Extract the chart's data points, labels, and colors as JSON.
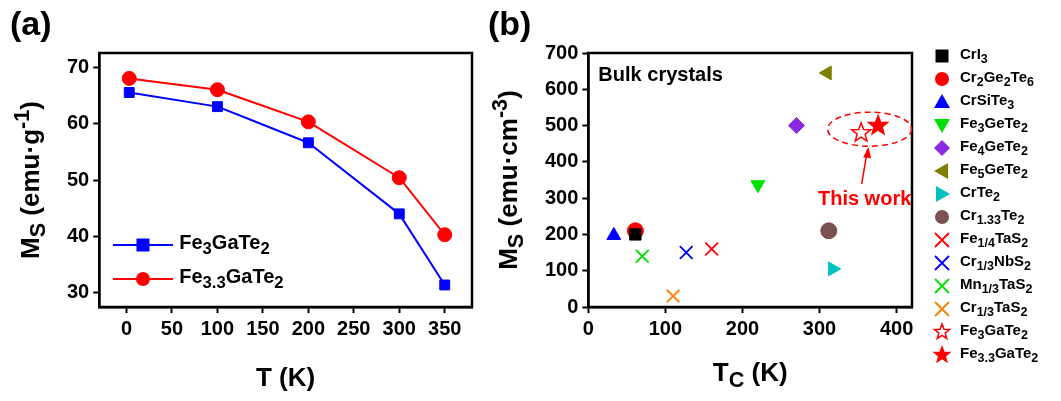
{
  "chart_data": [
    {
      "type": "line",
      "title": "(a)",
      "xlabel": "T (K)",
      "ylabel": "M$_{S}$ (emu·g$^{-1}$)",
      "x": [
        3,
        100,
        200,
        300,
        350
      ],
      "series": [
        {
          "name": "Fe$_{3}$GaTe$_{2}$",
          "color": "#0000ff",
          "marker": "square",
          "values": [
            65.5,
            63,
            56.6,
            44,
            31.4
          ]
        },
        {
          "name": "Fe$_{3.3}$GaTe$_{2}$",
          "color": "#ff0000",
          "marker": "circle",
          "values": [
            68,
            66,
            60.3,
            50.4,
            40.3
          ]
        }
      ],
      "xlim": [
        -30,
        380
      ],
      "ylim": [
        27.5,
        72.5
      ],
      "xticks": [
        0,
        50,
        100,
        150,
        200,
        250,
        300,
        350
      ],
      "yticks": [
        30,
        40,
        50,
        60,
        70
      ],
      "grid": false,
      "legend": "bottom left",
      "line_style": "solid"
    },
    {
      "type": "scatter",
      "title": "(b)",
      "xlabel": "T$_{C}$ (K)",
      "ylabel": "M$_{S}$ (emu·cm$^{-3}$)",
      "series": [
        {
          "name": "CrI$_{3}$",
          "color": "#000000",
          "marker": "square",
          "x": [
            61
          ],
          "values": [
            200
          ]
        },
        {
          "name": "Cr$_{2}$Ge$_{2}$Te$_{6}$",
          "color": "#ff0000",
          "marker": "circle",
          "x": [
            61
          ],
          "values": [
            210
          ]
        },
        {
          "name": "CrSiTe$_{3}$",
          "color": "#0000ff",
          "marker": "triangle",
          "x": [
            33
          ],
          "values": [
            197
          ]
        },
        {
          "name": "Fe$_{3}$GeTe$_{2}$",
          "color": "#00e000",
          "marker": "triangle-down",
          "x": [
            220
          ],
          "values": [
            337
          ]
        },
        {
          "name": "Fe$_{4}$GeTe$_{2}$",
          "color": "#8a2be2",
          "marker": "diamond",
          "x": [
            270
          ],
          "values": [
            500
          ]
        },
        {
          "name": "Fe$_{5}$GeTe$_{2}$",
          "color": "#808000",
          "marker": "triangle-left",
          "x": [
            310
          ],
          "values": [
            645
          ]
        },
        {
          "name": "CrTe$_{2}$",
          "color": "#00c0c0",
          "marker": "triangle-right",
          "x": [
            317
          ],
          "values": [
            105
          ]
        },
        {
          "name": "Cr$_{1.33}$Te$_{2}$",
          "color": "#7b5050",
          "marker": "circle",
          "x": [
            312
          ],
          "values": [
            210
          ]
        },
        {
          "name": "Fe$_{1/4}$TaS$_{2}$",
          "color": "#ff0000",
          "marker": "cross",
          "x": [
            160
          ],
          "values": [
            160
          ]
        },
        {
          "name": "Cr$_{1/3}$NbS$_{2}$",
          "color": "#0000ff",
          "marker": "cross",
          "x": [
            127
          ],
          "values": [
            150
          ]
        },
        {
          "name": "Mn$_{1/3}$TaS$_{2}$",
          "color": "#00e000",
          "marker": "cross",
          "x": [
            70
          ],
          "values": [
            140
          ]
        },
        {
          "name": "Cr$_{1/3}$TaS$_{2}$",
          "color": "#ff8000",
          "marker": "cross",
          "x": [
            110
          ],
          "values": [
            30
          ]
        },
        {
          "name": "Fe$_{3}$GaTe$_{2}$",
          "color": "#ff0000",
          "marker": "star-open",
          "x": [
            354
          ],
          "values": [
            480
          ]
        },
        {
          "name": "Fe$_{3.3}$GaTe$_{2}$",
          "color": "#ff0000",
          "marker": "star",
          "x": [
            376
          ],
          "values": [
            500
          ]
        }
      ],
      "xlim": [
        0,
        420
      ],
      "ylim": [
        0,
        700
      ],
      "xticks": [
        0,
        100,
        200,
        300,
        400
      ],
      "yticks": [
        0,
        100,
        200,
        300,
        400,
        500,
        600,
        700
      ],
      "grid": false,
      "legend": "right",
      "annotations": [
        "Bulk crystals",
        {
          "text": "This work",
          "x": 365,
          "y": 490
        }
      ]
    }
  ]
}
